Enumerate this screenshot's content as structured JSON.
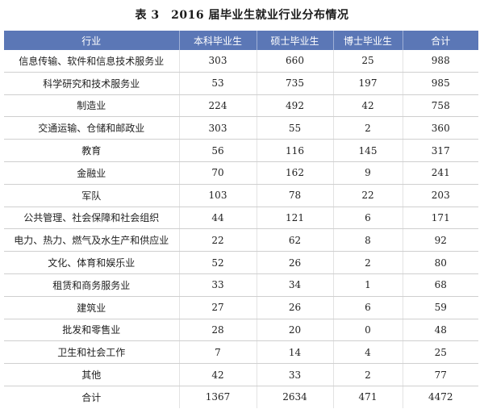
{
  "title": "表 3　2016 届毕业生就业行业分布情况",
  "headers": [
    "行业",
    "本科毕业生",
    "硕士毕业生",
    "博士毕业生",
    "合计"
  ],
  "rows": [
    [
      "信息传输、软件和信息技术服务业",
      "303",
      "660",
      "25",
      "988"
    ],
    [
      "科学研究和技术服务业",
      "53",
      "735",
      "197",
      "985"
    ],
    [
      "制造业",
      "224",
      "492",
      "42",
      "758"
    ],
    [
      "交通运输、仓储和邮政业",
      "303",
      "55",
      "2",
      "360"
    ],
    [
      "教育",
      "56",
      "116",
      "145",
      "317"
    ],
    [
      "金融业",
      "70",
      "162",
      "9",
      "241"
    ],
    [
      "军队",
      "103",
      "78",
      "22",
      "203"
    ],
    [
      "公共管理、社会保障和社会组织",
      "44",
      "121",
      "6",
      "171"
    ],
    [
      "电力、热力、燃气及水生产和供应业",
      "22",
      "62",
      "8",
      "92"
    ],
    [
      "文化、体育和娱乐业",
      "52",
      "26",
      "2",
      "80"
    ],
    [
      "租赁和商务服务业",
      "33",
      "34",
      "1",
      "68"
    ],
    [
      "建筑业",
      "27",
      "26",
      "6",
      "59"
    ],
    [
      "批发和零售业",
      "28",
      "20",
      "0",
      "48"
    ],
    [
      "卫生和社会工作",
      "7",
      "14",
      "4",
      "25"
    ],
    [
      "其他",
      "42",
      "33",
      "2",
      "77"
    ],
    [
      "合计",
      "1367",
      "2634",
      "471",
      "4472"
    ]
  ]
}
